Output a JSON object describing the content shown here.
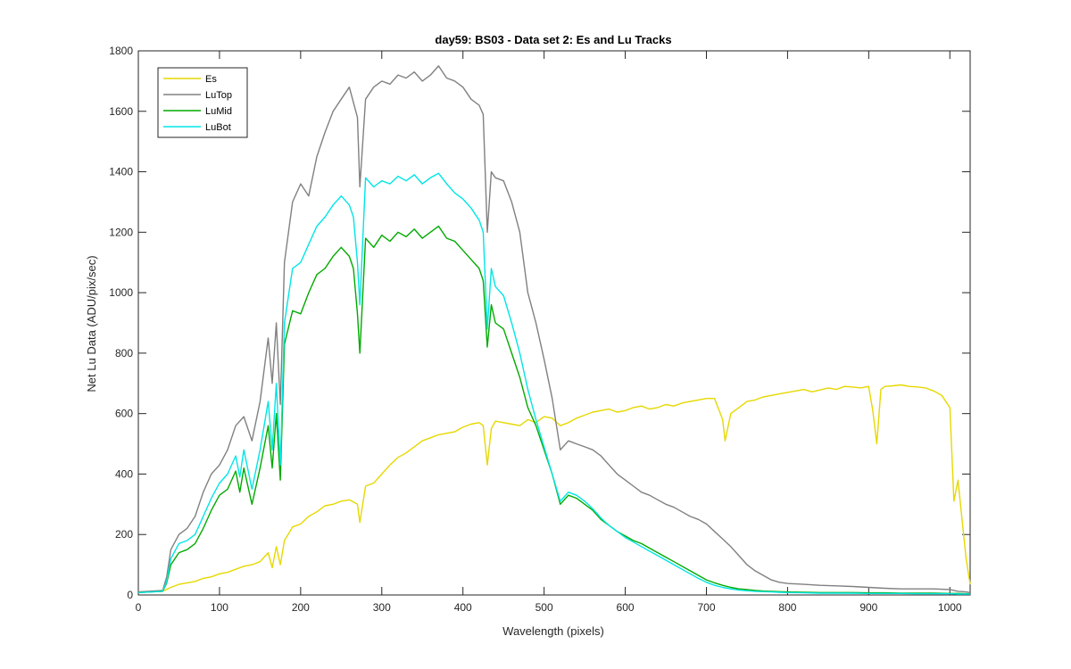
{
  "chart_data": {
    "type": "line",
    "title": "day59: BS03 - Data set 2: Es and Lu Tracks",
    "xlabel": "Wavelength (pixels)",
    "ylabel": "Net Lu Data (ADU/pix/sec)",
    "xlim": [
      0,
      1025
    ],
    "ylim": [
      0,
      1800
    ],
    "xticks": [
      0,
      100,
      200,
      300,
      400,
      500,
      600,
      700,
      800,
      900,
      1000
    ],
    "yticks": [
      0,
      200,
      400,
      600,
      800,
      1000,
      1200,
      1400,
      1600,
      1800
    ],
    "grid": false,
    "legend_position": "top-left",
    "series": [
      {
        "name": "Es",
        "color": "#e6d800",
        "x": [
          0,
          30,
          40,
          50,
          60,
          70,
          80,
          90,
          100,
          110,
          120,
          130,
          140,
          150,
          160,
          165,
          170,
          175,
          180,
          190,
          200,
          210,
          220,
          230,
          240,
          250,
          260,
          270,
          273,
          280,
          290,
          300,
          310,
          320,
          330,
          340,
          350,
          360,
          370,
          380,
          390,
          400,
          410,
          420,
          425,
          430,
          435,
          440,
          450,
          460,
          470,
          480,
          490,
          500,
          510,
          520,
          530,
          540,
          550,
          560,
          570,
          580,
          590,
          600,
          610,
          620,
          630,
          640,
          650,
          660,
          670,
          680,
          690,
          700,
          710,
          720,
          723,
          730,
          740,
          750,
          760,
          770,
          780,
          790,
          800,
          810,
          820,
          830,
          840,
          850,
          860,
          870,
          880,
          890,
          900,
          905,
          910,
          915,
          920,
          930,
          940,
          950,
          960,
          970,
          980,
          990,
          1000,
          1005,
          1010,
          1015,
          1020,
          1025
        ],
        "y": [
          10,
          12,
          25,
          35,
          40,
          45,
          55,
          60,
          70,
          75,
          85,
          95,
          100,
          110,
          140,
          90,
          160,
          100,
          180,
          225,
          235,
          260,
          275,
          295,
          300,
          310,
          315,
          300,
          240,
          360,
          370,
          400,
          430,
          455,
          470,
          490,
          510,
          520,
          530,
          535,
          540,
          555,
          565,
          570,
          560,
          430,
          550,
          575,
          570,
          565,
          560,
          580,
          570,
          590,
          585,
          560,
          570,
          585,
          595,
          605,
          610,
          615,
          605,
          610,
          620,
          625,
          615,
          620,
          630,
          625,
          635,
          640,
          645,
          650,
          650,
          580,
          510,
          600,
          620,
          640,
          645,
          655,
          660,
          665,
          670,
          675,
          680,
          672,
          678,
          685,
          680,
          690,
          688,
          685,
          690,
          610,
          500,
          680,
          690,
          692,
          695,
          690,
          688,
          685,
          675,
          660,
          620,
          310,
          380,
          250,
          120,
          35
        ]
      },
      {
        "name": "LuTop",
        "color": "#808080",
        "x": [
          0,
          30,
          35,
          40,
          50,
          60,
          70,
          80,
          90,
          100,
          110,
          120,
          130,
          140,
          150,
          160,
          165,
          170,
          175,
          180,
          190,
          200,
          210,
          220,
          230,
          240,
          250,
          260,
          270,
          273,
          280,
          290,
          300,
          310,
          320,
          330,
          340,
          350,
          360,
          370,
          380,
          390,
          400,
          410,
          420,
          425,
          430,
          435,
          440,
          450,
          460,
          470,
          480,
          490,
          500,
          510,
          520,
          530,
          540,
          550,
          560,
          570,
          580,
          590,
          600,
          610,
          620,
          630,
          640,
          650,
          660,
          670,
          680,
          690,
          700,
          710,
          720,
          730,
          740,
          750,
          760,
          770,
          780,
          790,
          800,
          820,
          840,
          860,
          880,
          900,
          920,
          940,
          960,
          980,
          1000,
          1010,
          1020,
          1025
        ],
        "y": [
          10,
          15,
          60,
          150,
          200,
          220,
          260,
          340,
          400,
          430,
          480,
          560,
          590,
          510,
          640,
          850,
          700,
          900,
          630,
          1100,
          1300,
          1360,
          1320,
          1450,
          1530,
          1600,
          1640,
          1680,
          1580,
          1350,
          1640,
          1680,
          1700,
          1690,
          1720,
          1710,
          1730,
          1700,
          1720,
          1750,
          1710,
          1700,
          1680,
          1640,
          1620,
          1590,
          1200,
          1400,
          1380,
          1370,
          1300,
          1200,
          1000,
          900,
          780,
          650,
          480,
          510,
          500,
          490,
          480,
          460,
          430,
          400,
          380,
          360,
          340,
          330,
          315,
          300,
          290,
          275,
          260,
          250,
          235,
          210,
          185,
          160,
          130,
          100,
          80,
          65,
          50,
          42,
          38,
          35,
          32,
          30,
          28,
          25,
          22,
          20,
          20,
          20,
          18,
          12,
          10,
          8
        ]
      },
      {
        "name": "LuMid",
        "color": "#00aa00",
        "x": [
          0,
          30,
          35,
          40,
          50,
          60,
          70,
          80,
          90,
          100,
          110,
          120,
          125,
          130,
          140,
          150,
          160,
          165,
          170,
          175,
          180,
          190,
          200,
          210,
          220,
          230,
          240,
          250,
          260,
          265,
          270,
          273,
          280,
          290,
          300,
          310,
          320,
          330,
          340,
          350,
          360,
          370,
          380,
          390,
          400,
          410,
          420,
          425,
          430,
          435,
          440,
          450,
          460,
          470,
          480,
          490,
          500,
          510,
          520,
          530,
          540,
          550,
          560,
          570,
          580,
          590,
          600,
          610,
          620,
          630,
          640,
          650,
          660,
          670,
          680,
          690,
          700,
          710,
          720,
          730,
          740,
          750,
          760,
          770,
          780,
          790,
          800,
          820,
          840,
          860,
          880,
          900,
          920,
          940,
          960,
          980,
          1000,
          1010,
          1020,
          1025
        ],
        "y": [
          8,
          12,
          40,
          100,
          140,
          150,
          170,
          220,
          280,
          330,
          350,
          410,
          340,
          420,
          300,
          420,
          560,
          420,
          600,
          380,
          830,
          940,
          930,
          1000,
          1060,
          1080,
          1120,
          1150,
          1120,
          1080,
          930,
          800,
          1180,
          1150,
          1190,
          1170,
          1200,
          1185,
          1210,
          1180,
          1200,
          1220,
          1180,
          1170,
          1140,
          1110,
          1080,
          1040,
          820,
          960,
          900,
          880,
          800,
          720,
          620,
          560,
          480,
          400,
          300,
          330,
          320,
          300,
          280,
          250,
          230,
          210,
          195,
          180,
          170,
          155,
          140,
          125,
          110,
          95,
          80,
          65,
          50,
          40,
          32,
          25,
          20,
          18,
          15,
          13,
          12,
          11,
          10,
          9,
          8,
          8,
          8,
          7,
          7,
          6,
          6,
          6,
          5,
          5,
          4,
          4
        ]
      },
      {
        "name": "LuBot",
        "color": "#00e5e5",
        "x": [
          0,
          30,
          35,
          40,
          50,
          60,
          70,
          80,
          90,
          100,
          110,
          120,
          125,
          130,
          140,
          150,
          160,
          165,
          170,
          175,
          180,
          190,
          200,
          210,
          220,
          230,
          240,
          250,
          260,
          265,
          270,
          273,
          280,
          290,
          300,
          310,
          320,
          330,
          340,
          350,
          360,
          370,
          380,
          390,
          400,
          410,
          420,
          425,
          430,
          435,
          440,
          450,
          460,
          470,
          480,
          490,
          500,
          510,
          520,
          530,
          540,
          550,
          560,
          570,
          580,
          590,
          600,
          610,
          620,
          630,
          640,
          650,
          660,
          670,
          680,
          690,
          700,
          710,
          720,
          730,
          740,
          750,
          760,
          770,
          780,
          790,
          800,
          820,
          840,
          860,
          880,
          900,
          920,
          940,
          960,
          980,
          1000,
          1010,
          1020,
          1025
        ],
        "y": [
          8,
          12,
          45,
          120,
          170,
          180,
          200,
          260,
          320,
          370,
          400,
          460,
          390,
          480,
          350,
          480,
          640,
          480,
          700,
          430,
          900,
          1080,
          1100,
          1160,
          1220,
          1250,
          1290,
          1320,
          1290,
          1250,
          1100,
          960,
          1380,
          1350,
          1370,
          1360,
          1385,
          1370,
          1390,
          1360,
          1380,
          1395,
          1360,
          1330,
          1310,
          1280,
          1240,
          1200,
          880,
          1080,
          1020,
          990,
          900,
          800,
          680,
          580,
          490,
          400,
          310,
          340,
          330,
          310,
          285,
          255,
          230,
          210,
          190,
          175,
          160,
          145,
          130,
          115,
          100,
          85,
          70,
          55,
          42,
          32,
          25,
          20,
          16,
          14,
          12,
          11,
          10,
          9,
          8,
          7,
          6,
          6,
          6,
          5,
          5,
          5,
          4,
          4,
          4,
          3,
          3,
          3
        ]
      }
    ]
  }
}
